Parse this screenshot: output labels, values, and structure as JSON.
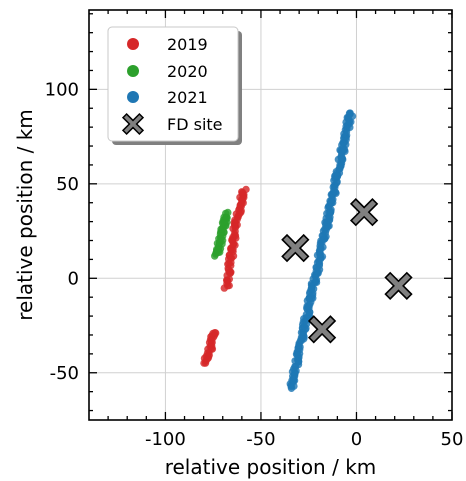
{
  "chart_data": {
    "type": "scatter",
    "xlabel": "relative position / km",
    "ylabel": "relative position / km",
    "xlim": [
      -140,
      50
    ],
    "ylim": [
      -75,
      142
    ],
    "x_ticks": [
      -100,
      -50,
      0,
      50
    ],
    "y_ticks": [
      -50,
      0,
      50,
      100
    ],
    "x_tick_labels": [
      "-100",
      "-50",
      "0",
      "50"
    ],
    "y_tick_labels": [
      "-50",
      "0",
      "50",
      "100"
    ],
    "grid": true,
    "legend_position": "top-left",
    "series": [
      {
        "name": "2019",
        "color": "#d62728",
        "segments": [
          {
            "from": [
              -79,
              -45
            ],
            "to": [
              -74,
              -28
            ],
            "count": 28
          },
          {
            "from": [
              -68,
              -5
            ],
            "to": [
              -63,
              28
            ],
            "count": 45
          },
          {
            "from": [
              -63,
              28
            ],
            "to": [
              -59,
              47
            ],
            "count": 30
          }
        ]
      },
      {
        "name": "2020",
        "color": "#2ca02c",
        "segments": [
          {
            "from": [
              -73,
              12
            ],
            "to": [
              -68,
              34
            ],
            "count": 45
          }
        ]
      },
      {
        "name": "2021",
        "color": "#1f77b4",
        "segments": [
          {
            "from": [
              -34,
              -58
            ],
            "to": [
              -3,
              88
            ],
            "count": 240
          }
        ]
      }
    ],
    "sites": {
      "name": "FD site",
      "color": "#808080",
      "points": [
        {
          "x": -32,
          "y": 16
        },
        {
          "x": 4,
          "y": 35
        },
        {
          "x": 22,
          "y": -4
        },
        {
          "x": -18,
          "y": -27
        }
      ]
    }
  }
}
